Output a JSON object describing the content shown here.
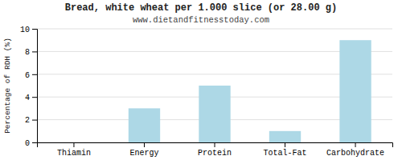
{
  "chart_data": {
    "type": "bar",
    "title": "Bread, white wheat per 1.000 slice (or 28.00 g)",
    "subtitle": "www.dietandfitnesstoday.com",
    "ylabel": "Percentage of RDH (%)",
    "categories": [
      "Thiamin",
      "Energy",
      "Protein",
      "Total-Fat",
      "Carbohydrate"
    ],
    "values": [
      0,
      3,
      5,
      1,
      9
    ],
    "color": "#add8e6",
    "ylim": [
      0,
      10
    ],
    "yticks": [
      0,
      2,
      4,
      6,
      8,
      10
    ],
    "grid": true
  }
}
